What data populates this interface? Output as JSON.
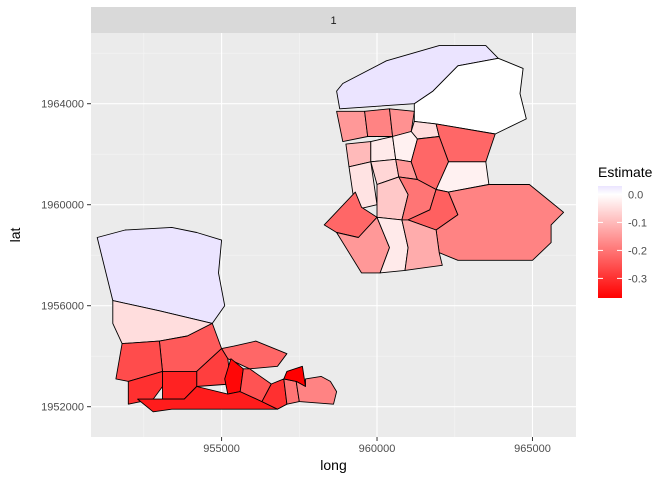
{
  "chart_data": {
    "type": "choropleth-map",
    "facet_label": "1",
    "xlabel": "long",
    "ylabel": "lat",
    "xlim": [
      950800,
      966400
    ],
    "ylim": [
      1950800,
      1966800
    ],
    "x_ticks": [
      955000,
      960000,
      965000
    ],
    "x_tick_labels": [
      "955000",
      "960000",
      "965000"
    ],
    "y_ticks": [
      1952000,
      1956000,
      1960000,
      1964000
    ],
    "y_tick_labels": [
      "1952000",
      "1956000",
      "1960000",
      "1964000"
    ],
    "grid": true,
    "legend": {
      "title": "Estimate",
      "position": "right",
      "range": [
        -0.37,
        0.03
      ],
      "breaks": [
        0.0,
        -0.1,
        -0.2,
        -0.3
      ],
      "break_labels": [
        "0.0",
        "-0.1",
        "-0.2",
        "-0.3"
      ],
      "low_color": "#FF0000",
      "mid_color": "#FFFFFF",
      "high_color": "#EBE4FF"
    },
    "regions": [
      {
        "estimate": 0.03,
        "coords": [
          [
            958900,
            1964800
          ],
          [
            960300,
            1965700
          ],
          [
            962000,
            1966300
          ],
          [
            963500,
            1966300
          ],
          [
            963900,
            1965800
          ],
          [
            962600,
            1965500
          ],
          [
            961800,
            1964500
          ],
          [
            961200,
            1964000
          ],
          [
            958800,
            1963800
          ],
          [
            958700,
            1964500
          ]
        ]
      },
      {
        "estimate": 0.0,
        "coords": [
          [
            961800,
            1964500
          ],
          [
            962600,
            1965500
          ],
          [
            963900,
            1965800
          ],
          [
            964700,
            1965400
          ],
          [
            964600,
            1964400
          ],
          [
            964800,
            1963400
          ],
          [
            963800,
            1962800
          ],
          [
            961900,
            1963200
          ],
          [
            961200,
            1963300
          ],
          [
            961200,
            1964000
          ]
        ]
      },
      {
        "estimate": -0.15,
        "coords": [
          [
            958700,
            1963700
          ],
          [
            959600,
            1963700
          ],
          [
            959700,
            1962700
          ],
          [
            958900,
            1962500
          ]
        ]
      },
      {
        "estimate": -0.18,
        "coords": [
          [
            959600,
            1963700
          ],
          [
            960400,
            1963800
          ],
          [
            960500,
            1962700
          ],
          [
            959700,
            1962700
          ]
        ]
      },
      {
        "estimate": -0.16,
        "coords": [
          [
            960400,
            1963800
          ],
          [
            961200,
            1963700
          ],
          [
            961100,
            1962900
          ],
          [
            960500,
            1962700
          ]
        ]
      },
      {
        "estimate": -0.05,
        "coords": [
          [
            961200,
            1963300
          ],
          [
            961900,
            1963200
          ],
          [
            962000,
            1962700
          ],
          [
            961300,
            1962600
          ],
          [
            961100,
            1962900
          ]
        ]
      },
      {
        "estimate": -0.22,
        "coords": [
          [
            961900,
            1963200
          ],
          [
            963800,
            1962800
          ],
          [
            963500,
            1961700
          ],
          [
            962300,
            1961700
          ],
          [
            962000,
            1962700
          ]
        ]
      },
      {
        "estimate": -0.1,
        "coords": [
          [
            959000,
            1962400
          ],
          [
            959800,
            1962500
          ],
          [
            959800,
            1961700
          ],
          [
            959100,
            1961500
          ]
        ]
      },
      {
        "estimate": -0.03,
        "coords": [
          [
            959800,
            1962500
          ],
          [
            960500,
            1962700
          ],
          [
            960600,
            1961800
          ],
          [
            959800,
            1961700
          ]
        ]
      },
      {
        "estimate": -0.02,
        "coords": [
          [
            960500,
            1962700
          ],
          [
            961100,
            1962900
          ],
          [
            961300,
            1962600
          ],
          [
            961100,
            1961700
          ],
          [
            960600,
            1961800
          ]
        ]
      },
      {
        "estimate": -0.04,
        "coords": [
          [
            959100,
            1961500
          ],
          [
            959800,
            1961700
          ],
          [
            960000,
            1960000
          ],
          [
            959300,
            1959800
          ]
        ]
      },
      {
        "estimate": -0.06,
        "coords": [
          [
            959800,
            1961700
          ],
          [
            960600,
            1961800
          ],
          [
            960700,
            1961100
          ],
          [
            960000,
            1960800
          ]
        ]
      },
      {
        "estimate": -0.15,
        "coords": [
          [
            960600,
            1961800
          ],
          [
            961100,
            1961700
          ],
          [
            961300,
            1961000
          ],
          [
            960700,
            1961100
          ]
        ]
      },
      {
        "estimate": -0.22,
        "coords": [
          [
            961100,
            1961700
          ],
          [
            961300,
            1962600
          ],
          [
            962000,
            1962700
          ],
          [
            962300,
            1961700
          ],
          [
            961900,
            1960600
          ],
          [
            961300,
            1961000
          ]
        ]
      },
      {
        "estimate": -0.02,
        "coords": [
          [
            962300,
            1961700
          ],
          [
            963500,
            1961700
          ],
          [
            963600,
            1960800
          ],
          [
            962300,
            1960500
          ],
          [
            961900,
            1960600
          ]
        ]
      },
      {
        "estimate": -0.08,
        "coords": [
          [
            960000,
            1960800
          ],
          [
            960700,
            1961100
          ],
          [
            961000,
            1960400
          ],
          [
            960800,
            1959400
          ],
          [
            960000,
            1959500
          ]
        ]
      },
      {
        "estimate": -0.2,
        "coords": [
          [
            960700,
            1961100
          ],
          [
            961300,
            1961000
          ],
          [
            961900,
            1960600
          ],
          [
            961700,
            1959800
          ],
          [
            961000,
            1959400
          ],
          [
            960800,
            1959400
          ],
          [
            961000,
            1960400
          ]
        ]
      },
      {
        "estimate": -0.23,
        "coords": [
          [
            961900,
            1960600
          ],
          [
            962300,
            1960500
          ],
          [
            962600,
            1959600
          ],
          [
            961900,
            1959000
          ],
          [
            961000,
            1959400
          ],
          [
            961700,
            1959800
          ]
        ]
      },
      {
        "estimate": -0.18,
        "coords": [
          [
            962300,
            1960500
          ],
          [
            963600,
            1960800
          ],
          [
            964900,
            1960800
          ],
          [
            965500,
            1960200
          ],
          [
            966000,
            1959700
          ],
          [
            965600,
            1959200
          ],
          [
            965600,
            1958500
          ],
          [
            965000,
            1957800
          ],
          [
            963900,
            1957800
          ],
          [
            962600,
            1957800
          ],
          [
            962000,
            1958100
          ],
          [
            961900,
            1959000
          ],
          [
            962600,
            1959600
          ]
        ]
      },
      {
        "estimate": -0.22,
        "coords": [
          [
            958300,
            1959200
          ],
          [
            959300,
            1960500
          ],
          [
            959500,
            1959900
          ],
          [
            960000,
            1959500
          ],
          [
            959400,
            1958700
          ],
          [
            958700,
            1958900
          ]
        ]
      },
      {
        "estimate": -0.15,
        "coords": [
          [
            958700,
            1958900
          ],
          [
            959400,
            1958700
          ],
          [
            960000,
            1959500
          ],
          [
            960400,
            1958300
          ],
          [
            960100,
            1957300
          ],
          [
            959500,
            1957300
          ]
        ]
      },
      {
        "estimate": -0.03,
        "coords": [
          [
            960000,
            1959500
          ],
          [
            960800,
            1959400
          ],
          [
            961000,
            1958300
          ],
          [
            960900,
            1957400
          ],
          [
            960100,
            1957300
          ],
          [
            960400,
            1958300
          ]
        ]
      },
      {
        "estimate": -0.12,
        "coords": [
          [
            960800,
            1959400
          ],
          [
            961000,
            1959400
          ],
          [
            961900,
            1959000
          ],
          [
            962000,
            1958100
          ],
          [
            962100,
            1957600
          ],
          [
            961500,
            1957500
          ],
          [
            960900,
            1957400
          ],
          [
            961000,
            1958300
          ]
        ]
      },
      {
        "estimate": 0.03,
        "coords": [
          [
            951000,
            1958700
          ],
          [
            951900,
            1959000
          ],
          [
            953400,
            1959100
          ],
          [
            954200,
            1958900
          ],
          [
            955000,
            1958600
          ],
          [
            954900,
            1957300
          ],
          [
            955100,
            1956000
          ],
          [
            954700,
            1955300
          ],
          [
            953000,
            1955800
          ],
          [
            951500,
            1956200
          ]
        ]
      },
      {
        "estimate": -0.05,
        "coords": [
          [
            951500,
            1956200
          ],
          [
            953000,
            1955800
          ],
          [
            954700,
            1955300
          ],
          [
            953900,
            1954800
          ],
          [
            953000,
            1954600
          ],
          [
            951800,
            1954500
          ],
          [
            951500,
            1955300
          ]
        ]
      },
      {
        "estimate": -0.24,
        "coords": [
          [
            953000,
            1954600
          ],
          [
            953900,
            1954800
          ],
          [
            954700,
            1955300
          ],
          [
            955000,
            1954300
          ],
          [
            954200,
            1953400
          ],
          [
            953100,
            1953400
          ]
        ]
      },
      {
        "estimate": -0.26,
        "coords": [
          [
            951800,
            1954500
          ],
          [
            953000,
            1954600
          ],
          [
            953100,
            1953400
          ],
          [
            952000,
            1953000
          ],
          [
            951600,
            1953100
          ]
        ]
      },
      {
        "estimate": -0.22,
        "coords": [
          [
            955000,
            1954300
          ],
          [
            955400,
            1954400
          ],
          [
            956100,
            1954600
          ],
          [
            957100,
            1954100
          ],
          [
            956800,
            1953600
          ],
          [
            955900,
            1953500
          ],
          [
            955200,
            1953900
          ]
        ]
      },
      {
        "estimate": -0.28,
        "coords": [
          [
            954200,
            1953400
          ],
          [
            955000,
            1954300
          ],
          [
            955200,
            1953900
          ],
          [
            955300,
            1952900
          ],
          [
            954200,
            1952800
          ]
        ]
      },
      {
        "estimate": -0.36,
        "coords": [
          [
            955300,
            1953900
          ],
          [
            955700,
            1953500
          ],
          [
            955600,
            1952600
          ],
          [
            955200,
            1952500
          ],
          [
            955100,
            1953100
          ]
        ]
      },
      {
        "estimate": -0.3,
        "coords": [
          [
            952000,
            1953000
          ],
          [
            953100,
            1953400
          ],
          [
            953100,
            1952800
          ],
          [
            952800,
            1952300
          ],
          [
            952000,
            1952100
          ]
        ]
      },
      {
        "estimate": -0.32,
        "coords": [
          [
            953100,
            1953400
          ],
          [
            954200,
            1953400
          ],
          [
            954200,
            1952800
          ],
          [
            953800,
            1952300
          ],
          [
            953100,
            1952300
          ],
          [
            953100,
            1952800
          ]
        ]
      },
      {
        "estimate": -0.33,
        "coords": [
          [
            952300,
            1952300
          ],
          [
            953100,
            1952300
          ],
          [
            953800,
            1952300
          ],
          [
            954200,
            1952800
          ],
          [
            955200,
            1952500
          ],
          [
            955600,
            1952600
          ],
          [
            956300,
            1952200
          ],
          [
            956800,
            1951900
          ],
          [
            956400,
            1951900
          ],
          [
            954900,
            1951900
          ],
          [
            953400,
            1951900
          ],
          [
            952800,
            1951800
          ]
        ]
      },
      {
        "estimate": -0.25,
        "coords": [
          [
            955600,
            1952600
          ],
          [
            956300,
            1952200
          ],
          [
            956600,
            1952900
          ],
          [
            955900,
            1953500
          ],
          [
            955700,
            1953500
          ]
        ]
      },
      {
        "estimate": -0.3,
        "coords": [
          [
            956600,
            1952900
          ],
          [
            957000,
            1953100
          ],
          [
            957100,
            1952100
          ],
          [
            956800,
            1951900
          ],
          [
            956300,
            1952200
          ]
        ]
      },
      {
        "estimate": -0.2,
        "coords": [
          [
            957000,
            1953100
          ],
          [
            957400,
            1953000
          ],
          [
            957500,
            1952200
          ],
          [
            957100,
            1952100
          ]
        ]
      },
      {
        "estimate": -0.37,
        "coords": [
          [
            957100,
            1953400
          ],
          [
            957600,
            1953600
          ],
          [
            957700,
            1952800
          ],
          [
            957400,
            1953000
          ],
          [
            957000,
            1953100
          ]
        ]
      },
      {
        "estimate": -0.18,
        "coords": [
          [
            957500,
            1952200
          ],
          [
            957400,
            1953000
          ],
          [
            957700,
            1952800
          ],
          [
            957700,
            1953100
          ],
          [
            958200,
            1953200
          ],
          [
            958500,
            1953000
          ],
          [
            958700,
            1952600
          ],
          [
            958600,
            1952100
          ]
        ]
      }
    ]
  }
}
